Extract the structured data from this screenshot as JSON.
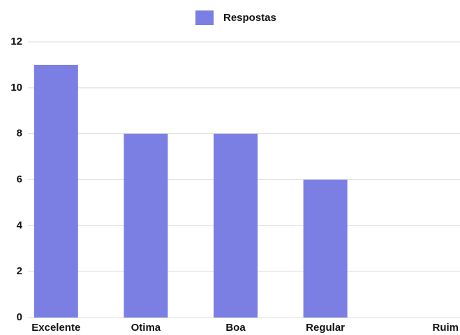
{
  "chart_data": {
    "type": "bar",
    "series": [
      {
        "name": "Respostas",
        "color": "#7b7fe3",
        "values": [
          11,
          8,
          8,
          6,
          0
        ]
      }
    ],
    "categories": [
      "Excelente",
      "Otima",
      "Boa",
      "Regular",
      "Ruim"
    ],
    "ylim": [
      0,
      12
    ],
    "yticks": [
      0,
      2,
      4,
      6,
      8,
      10,
      12
    ],
    "grid": true,
    "legend": "top"
  }
}
